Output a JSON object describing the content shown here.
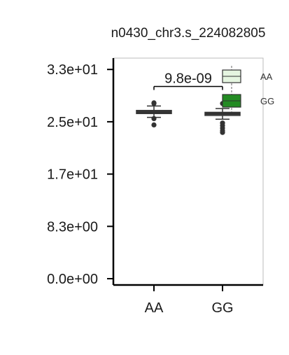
{
  "chart_data": {
    "type": "box",
    "title": "n0430_chr3.s_224082805",
    "xlabel": "",
    "ylabel": "",
    "categories": [
      "AA",
      "GG"
    ],
    "ylim": [
      -1.0,
      35.0
    ],
    "y_ticks": [
      0.0,
      8.3,
      16.6,
      24.9,
      33.2
    ],
    "y_tick_labels": [
      "0.0e+00",
      "8.3e+00",
      "1.7e+01",
      "2.5e+01",
      "3.3e+01"
    ],
    "series": [
      {
        "category": "AA",
        "whisker_low": 25.6,
        "q1": 26.2,
        "median": 26.4,
        "q3": 26.7,
        "whisker_high": 27.4,
        "outliers": [
          27.8,
          27.9,
          25.4,
          24.4
        ]
      },
      {
        "category": "GG",
        "whisker_low": 25.3,
        "q1": 25.9,
        "median": 26.2,
        "q3": 26.4,
        "whisker_high": 27.0,
        "outliers": [
          27.8,
          24.7,
          24.3,
          23.9,
          23.5,
          23.2
        ]
      }
    ],
    "annotation": {
      "text": "9.8e-09",
      "between": [
        "AA",
        "GG"
      ],
      "y": 30.5
    },
    "legend": {
      "position": "top-right",
      "entries": [
        {
          "label": "AA",
          "color": "#e5f5e0"
        },
        {
          "label": "GG",
          "color": "#238b23"
        }
      ]
    },
    "grid": false
  }
}
